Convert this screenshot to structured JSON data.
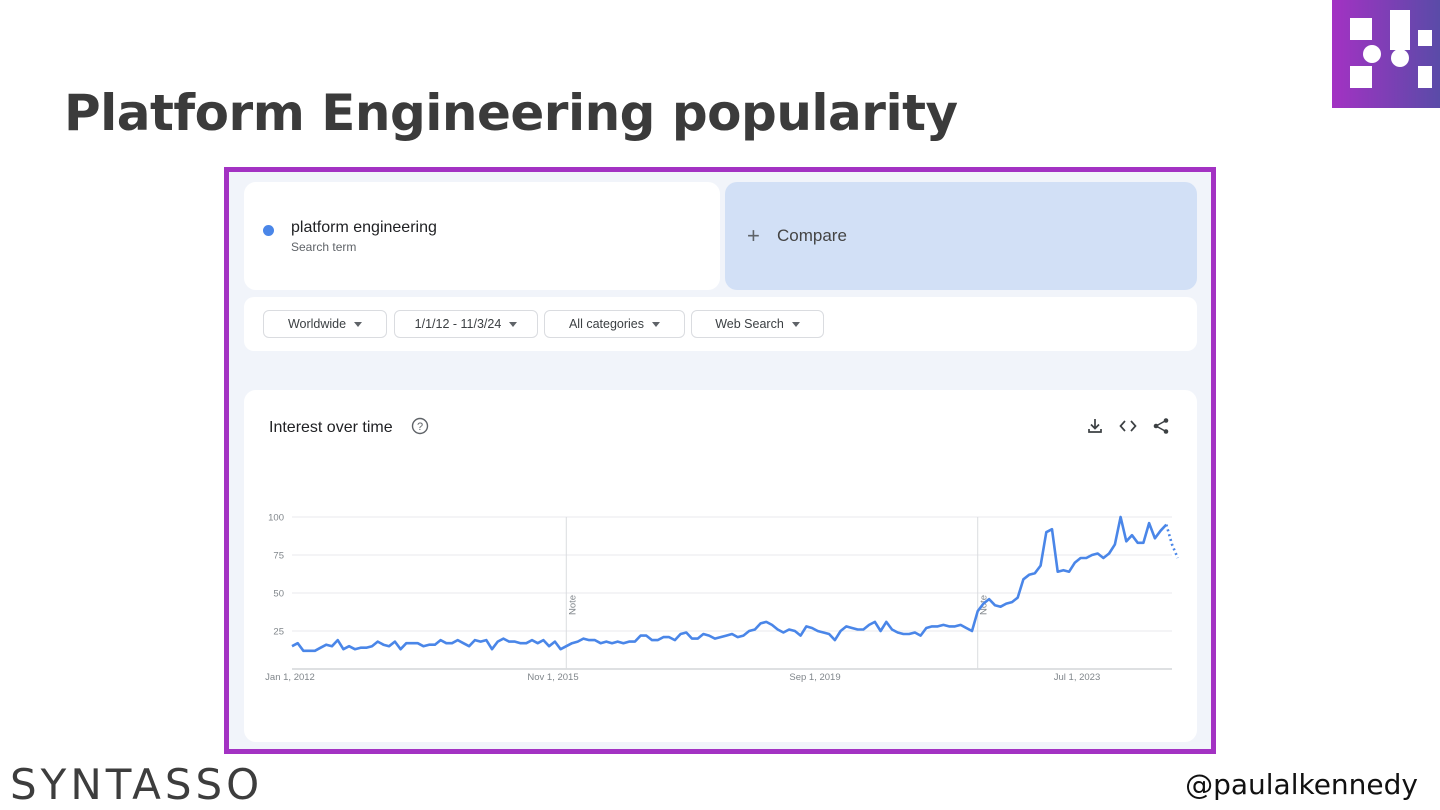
{
  "slide": {
    "title": "Platform Engineering popularity",
    "brand": "SYNTASSO",
    "handle": "@paulalkennedy"
  },
  "colors": {
    "frame": "#a332c3",
    "series": "#4a86e8",
    "compare_bg": "#d2e0f6",
    "logo_purple": "#a332c3",
    "logo_indigo": "#5a4ba8"
  },
  "search": {
    "term": "platform engineering",
    "term_type": "Search term",
    "compare_label": "Compare"
  },
  "filters": [
    {
      "label": "Worldwide"
    },
    {
      "label": "1/1/12 - 11/3/24"
    },
    {
      "label": "All categories"
    },
    {
      "label": "Web Search"
    }
  ],
  "chart_card": {
    "title": "Interest over time",
    "icons": [
      "help-icon",
      "download-icon",
      "embed-icon",
      "share-icon"
    ]
  },
  "chart_data": {
    "type": "line",
    "title": "Interest over time",
    "xlabel": "",
    "ylabel": "",
    "ylim": [
      0,
      100
    ],
    "yticks": [
      25,
      50,
      75,
      100
    ],
    "xticks": [
      "Jan 1, 2012",
      "Nov 1, 2015",
      "Sep 1, 2019",
      "Jul 1, 2023"
    ],
    "x_range": [
      "2012-01",
      "2024-11"
    ],
    "notes": [
      {
        "x": "2016-01",
        "label": "Note"
      },
      {
        "x": "2022-01",
        "label": "Note"
      }
    ],
    "grid": true,
    "series": [
      {
        "name": "platform engineering",
        "x_start": "2012-01",
        "step": "month",
        "values": [
          15,
          17,
          12,
          12,
          12,
          14,
          16,
          15,
          19,
          13,
          15,
          13,
          14,
          14,
          15,
          18,
          16,
          15,
          18,
          13,
          17,
          17,
          17,
          15,
          16,
          16,
          19,
          17,
          17,
          19,
          17,
          15,
          19,
          18,
          19,
          13,
          18,
          20,
          18,
          18,
          17,
          17,
          19,
          17,
          19,
          15,
          18,
          13,
          15,
          17,
          18,
          20,
          19,
          19,
          17,
          18,
          17,
          18,
          17,
          18,
          18,
          22,
          22,
          19,
          19,
          21,
          21,
          19,
          23,
          24,
          20,
          20,
          23,
          22,
          20,
          21,
          22,
          23,
          21,
          22,
          25,
          26,
          30,
          31,
          29,
          26,
          24,
          26,
          25,
          22,
          28,
          27,
          25,
          24,
          23,
          19,
          25,
          28,
          27,
          26,
          26,
          29,
          31,
          25,
          31,
          26,
          24,
          23,
          23,
          24,
          22,
          27,
          28,
          28,
          29,
          28,
          28,
          29,
          27,
          25,
          38,
          43,
          46,
          42,
          41,
          43,
          44,
          47,
          59,
          62,
          63,
          68,
          90,
          92,
          64,
          65,
          64,
          70,
          73,
          73,
          75,
          76,
          73,
          76,
          82,
          100,
          84,
          88,
          83,
          83,
          96,
          86,
          91,
          95
        ],
        "partial_values": [
          95,
          82,
          73
        ]
      }
    ]
  }
}
